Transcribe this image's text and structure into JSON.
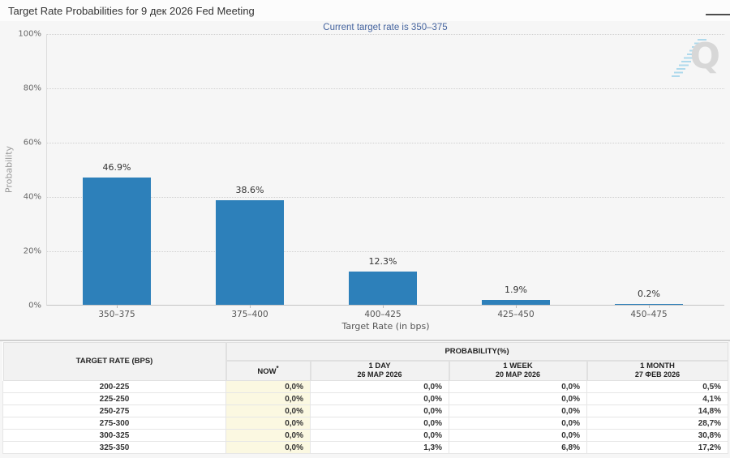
{
  "header": {
    "title": "Target Rate Probabilities for 9 дек 2026 Fed Meeting"
  },
  "chart": {
    "subtitle": "Current target rate is 350–375",
    "watermark_letter": "Q"
  },
  "chart_data": {
    "type": "bar",
    "title": "Target Rate Probabilities for 9 дек 2026 Fed Meeting",
    "subtitle": "Current target rate is 350–375",
    "categories": [
      "350–375",
      "375–400",
      "400–425",
      "425–450",
      "450–475"
    ],
    "values": [
      46.9,
      38.6,
      12.3,
      1.9,
      0.2
    ],
    "bar_labels": [
      "46.9%",
      "38.6%",
      "12.3%",
      "1.9%",
      "0.2%"
    ],
    "xlabel": "Target Rate (in bps)",
    "ylabel": "Probability",
    "ylim": [
      0,
      100
    ],
    "yticks": [
      0,
      20,
      40,
      60,
      80,
      100
    ],
    "ytick_labels": [
      "0%",
      "20%",
      "40%",
      "60%",
      "80%",
      "100%"
    ],
    "grid": "horizontal-dotted",
    "legend": "none",
    "bar_color": "#2d80ba"
  },
  "table": {
    "rate_header": "TARGET RATE (BPS)",
    "group_header": "PROBABILITY(%)",
    "columns": [
      {
        "label": "NOW",
        "sup": "*",
        "date": ""
      },
      {
        "label": "1 DAY",
        "sup": "",
        "date": "26 МАР 2026"
      },
      {
        "label": "1 WEEK",
        "sup": "",
        "date": "20 МАР 2026"
      },
      {
        "label": "1 MONTH",
        "sup": "",
        "date": "27 ФЕВ 2026"
      }
    ],
    "rows": [
      {
        "rate": "200-225",
        "values": [
          "0,0%",
          "0,0%",
          "0,0%",
          "0,5%"
        ]
      },
      {
        "rate": "225-250",
        "values": [
          "0,0%",
          "0,0%",
          "0,0%",
          "4,1%"
        ]
      },
      {
        "rate": "250-275",
        "values": [
          "0,0%",
          "0,0%",
          "0,0%",
          "14,8%"
        ]
      },
      {
        "rate": "275-300",
        "values": [
          "0,0%",
          "0,0%",
          "0,0%",
          "28,7%"
        ]
      },
      {
        "rate": "300-325",
        "values": [
          "0,0%",
          "0,0%",
          "0,0%",
          "30,8%"
        ]
      },
      {
        "rate": "325-350",
        "values": [
          "0,0%",
          "1,3%",
          "6,8%",
          "17,2%"
        ]
      }
    ]
  },
  "colors": {
    "bar": "#2d80ba",
    "subtitle_text": "#44639e",
    "now_column_bg": "#fbf8e1",
    "watermark_gray": "#d7d7d7",
    "watermark_blue": "#aed9ec"
  }
}
